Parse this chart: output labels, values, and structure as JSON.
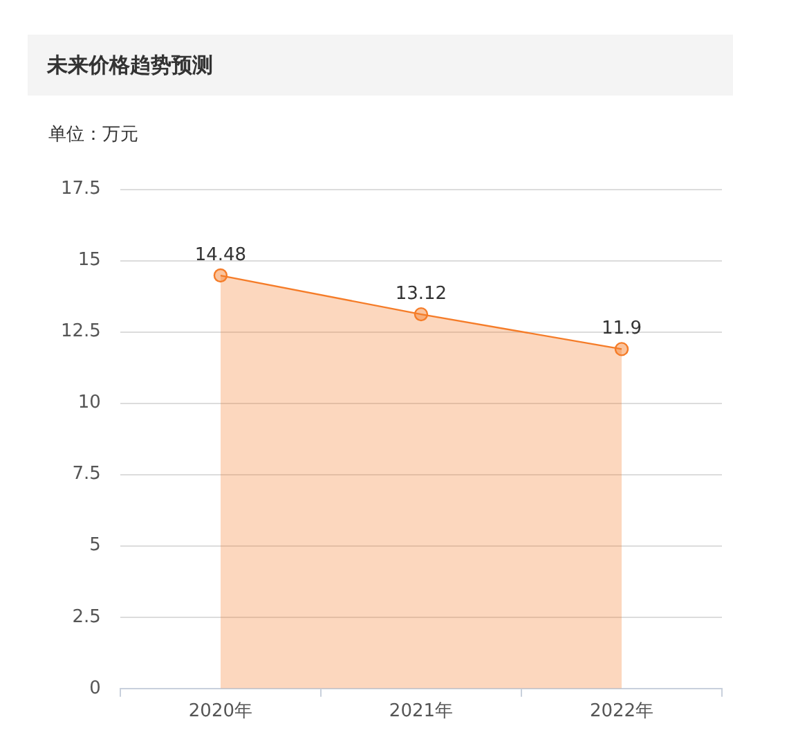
{
  "chart_data": {
    "type": "area",
    "title": "未来价格趋势预测",
    "ylabel": "单位：万元",
    "categories": [
      "2020年",
      "2021年",
      "2022年"
    ],
    "series": [
      {
        "color": "#f57c28",
        "values": [
          14.48,
          13.12,
          11.9
        ]
      }
    ],
    "ylim": [
      0,
      17.5
    ],
    "yticks": [
      0,
      2.5,
      5,
      7.5,
      10,
      12.5,
      15,
      17.5
    ],
    "grid": "y",
    "legend": false,
    "marker": "circle",
    "data_labels": true
  }
}
